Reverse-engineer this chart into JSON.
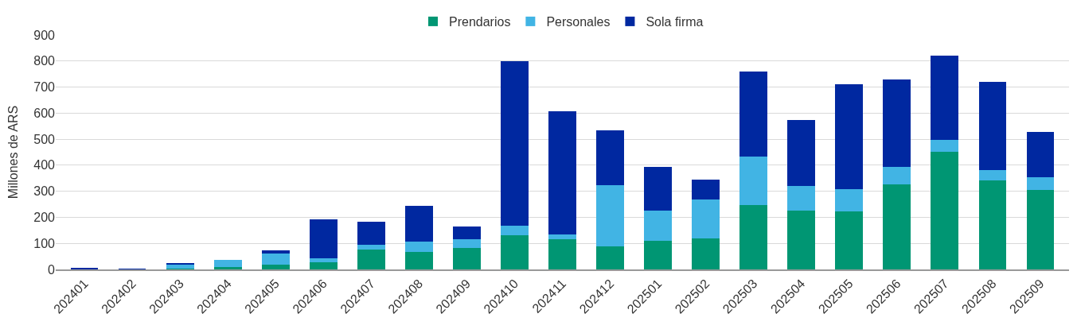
{
  "chart_data": {
    "type": "bar",
    "stacked": true,
    "ylabel": "Millones de ARS",
    "categories": [
      "202401",
      "202402",
      "202403",
      "202404",
      "202405",
      "202406",
      "202407",
      "202408",
      "202409",
      "202410",
      "202411",
      "202412",
      "202501",
      "202502",
      "202503",
      "202504",
      "202505",
      "202506",
      "202507",
      "202508",
      "202509"
    ],
    "series": [
      {
        "name": "Prendarios",
        "color": "#009673",
        "values": [
          1,
          0,
          2,
          9,
          19,
          27,
          75,
          66,
          81,
          132,
          117,
          89,
          111,
          119,
          248,
          225,
          222,
          325,
          453,
          342,
          306
        ]
      },
      {
        "name": "Personales",
        "color": "#41b4e4",
        "values": [
          2,
          1,
          19,
          29,
          41,
          17,
          21,
          42,
          36,
          35,
          18,
          234,
          116,
          150,
          186,
          96,
          85,
          68,
          44,
          38,
          47
        ]
      },
      {
        "name": "Sola firma",
        "color": "#0028a0",
        "values": [
          1,
          1,
          2,
          0,
          13,
          148,
          86,
          137,
          49,
          631,
          472,
          210,
          166,
          77,
          326,
          254,
          403,
          336,
          325,
          339,
          176
        ]
      }
    ],
    "ylim": [
      0,
      900
    ],
    "yticks": [
      0,
      100,
      200,
      300,
      400,
      500,
      600,
      700,
      800,
      900
    ],
    "grid": "y",
    "legend": "top"
  }
}
